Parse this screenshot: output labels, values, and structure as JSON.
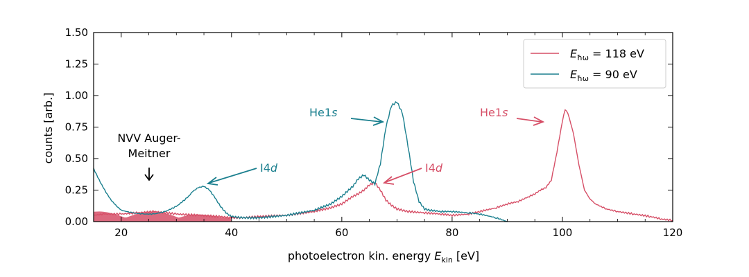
{
  "chart_data": {
    "type": "line",
    "title": "",
    "xlabel": "photoelectron kin. energy",
    "xlabel_symbol": "E",
    "xlabel_sub": "kin",
    "xlabel_unit": "[eV]",
    "ylabel": "counts [arb.]",
    "xlim": [
      15,
      120
    ],
    "ylim": [
      0,
      1.5
    ],
    "xticks": [
      20,
      40,
      60,
      80,
      100,
      120
    ],
    "yticks": [
      0,
      0.25,
      0.5,
      0.75,
      1.0,
      1.25,
      1.5
    ],
    "ytick_labels": [
      "0.00",
      "0.25",
      "0.50",
      "0.75",
      "1.00",
      "1.25",
      "1.50"
    ],
    "grid": false,
    "legend_position": "top-right",
    "series": [
      {
        "name": "E_ħω = 118 eV",
        "legend_symbol": "E",
        "legend_sub": "ħω",
        "legend_rest": " = 118 eV",
        "color": "#d64f67",
        "x": [
          15,
          17,
          20,
          23,
          26,
          30,
          34,
          38,
          40,
          42,
          45,
          50,
          55,
          58,
          60,
          62,
          63,
          64,
          65,
          66,
          67,
          68,
          69,
          70,
          72,
          75,
          78,
          80,
          83,
          85,
          88,
          90,
          92,
          94,
          95,
          96,
          97,
          98,
          99,
          100,
          100.5,
          101,
          102,
          103,
          104,
          105,
          106,
          108,
          110,
          113,
          116,
          118,
          120
        ],
        "values": [
          0.05,
          0.06,
          0.06,
          0.07,
          0.08,
          0.06,
          0.05,
          0.04,
          0.03,
          0.03,
          0.04,
          0.05,
          0.08,
          0.11,
          0.14,
          0.2,
          0.22,
          0.25,
          0.29,
          0.31,
          0.25,
          0.17,
          0.13,
          0.1,
          0.08,
          0.07,
          0.06,
          0.05,
          0.06,
          0.08,
          0.11,
          0.14,
          0.16,
          0.2,
          0.22,
          0.25,
          0.27,
          0.33,
          0.55,
          0.8,
          0.89,
          0.86,
          0.7,
          0.45,
          0.25,
          0.18,
          0.14,
          0.1,
          0.08,
          0.06,
          0.04,
          0.02,
          0.01
        ]
      },
      {
        "name": "E_ħω = 90 eV",
        "legend_symbol": "E",
        "legend_sub": "ħω",
        "legend_rest": " = 90 eV",
        "color": "#1a7f8e",
        "x": [
          15,
          16,
          17,
          18,
          19,
          20,
          22,
          24,
          26,
          28,
          30,
          32,
          33,
          34,
          35,
          36,
          37,
          38,
          39,
          40,
          42,
          45,
          50,
          55,
          58,
          60,
          62,
          63,
          64,
          65,
          66,
          67,
          68,
          69,
          70,
          71,
          72,
          73,
          74,
          75,
          76,
          78,
          80,
          83,
          85,
          88,
          90
        ],
        "values": [
          0.42,
          0.33,
          0.25,
          0.18,
          0.13,
          0.09,
          0.07,
          0.06,
          0.06,
          0.08,
          0.12,
          0.19,
          0.24,
          0.27,
          0.28,
          0.25,
          0.19,
          0.12,
          0.07,
          0.04,
          0.03,
          0.03,
          0.05,
          0.09,
          0.14,
          0.2,
          0.28,
          0.34,
          0.37,
          0.33,
          0.3,
          0.46,
          0.75,
          0.92,
          0.95,
          0.86,
          0.6,
          0.32,
          0.16,
          0.1,
          0.09,
          0.08,
          0.08,
          0.07,
          0.06,
          0.03,
          0.0
        ]
      }
    ],
    "annotations": [
      {
        "text": "NVV Auger-",
        "text2": "Meitner",
        "color": "#000000"
      },
      {
        "text": "I4",
        "italic": "d",
        "color": "#1a7f8e"
      },
      {
        "text": "He1",
        "italic": "s",
        "color": "#1a7f8e"
      },
      {
        "text": "I4",
        "italic": "d",
        "color": "#d64f67"
      },
      {
        "text": "He1",
        "italic": "s",
        "color": "#d64f67"
      }
    ]
  }
}
